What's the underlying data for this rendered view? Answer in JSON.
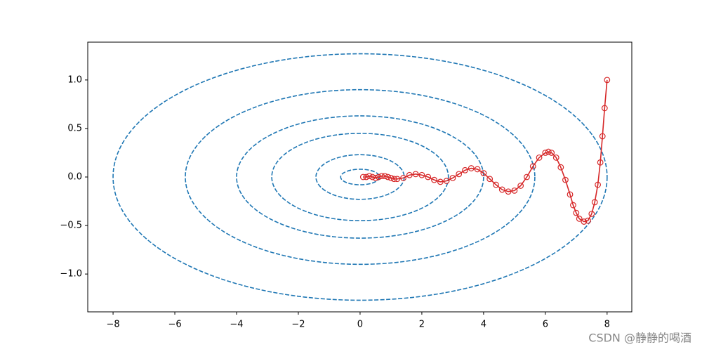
{
  "chart_data": {
    "type": "line",
    "xlim": [
      -8.82,
      8.8
    ],
    "ylim": [
      -1.39,
      1.39
    ],
    "xticks": [
      {
        "value": -8,
        "label": "−8"
      },
      {
        "value": -6,
        "label": "−6"
      },
      {
        "value": -4,
        "label": "−4"
      },
      {
        "value": -2,
        "label": "−2"
      },
      0,
      2,
      4,
      6,
      8
    ],
    "yticks": [
      {
        "value": -1,
        "label": "−1.0"
      },
      {
        "value": -0.5,
        "label": "−0.5"
      },
      {
        "value": 0,
        "label": "0.0"
      },
      {
        "value": 0.5,
        "label": "0.5"
      },
      {
        "value": 1,
        "label": "1.0"
      }
    ],
    "contour_color": "#1f77b4",
    "contours": [
      {
        "rx": 0.63,
        "ry": 0.08
      },
      {
        "rx": 1.43,
        "ry": 0.23
      },
      {
        "rx": 2.86,
        "ry": 0.45
      },
      {
        "rx": 4.0,
        "ry": 0.63
      },
      {
        "rx": 5.66,
        "ry": 0.9
      },
      {
        "rx": 8.0,
        "ry": 1.27
      }
    ],
    "series": [
      {
        "color": "#d62728",
        "x": [
          0.1,
          0.2,
          0.3,
          0.4,
          0.5,
          0.6,
          0.7,
          0.8,
          0.9,
          1.0,
          1.1,
          1.2,
          1.4,
          1.6,
          1.8,
          2.0,
          2.2,
          2.4,
          2.6,
          2.8,
          3.0,
          3.2,
          3.4,
          3.6,
          3.8,
          4.0,
          4.2,
          4.4,
          4.6,
          4.8,
          5.0,
          5.2,
          5.4,
          5.6,
          5.8,
          6.0,
          6.1,
          6.2,
          6.35,
          6.5,
          6.65,
          6.8,
          6.9,
          7.0,
          7.1,
          7.25,
          7.38,
          7.5,
          7.6,
          7.7,
          7.78,
          7.85,
          7.92,
          8.0
        ],
        "values": [
          0.0,
          0.0,
          0.01,
          0.0,
          -0.01,
          0.0,
          0.01,
          0.01,
          0.0,
          -0.01,
          -0.02,
          -0.02,
          -0.01,
          0.02,
          0.03,
          0.02,
          0.0,
          -0.03,
          -0.05,
          -0.04,
          -0.01,
          0.03,
          0.07,
          0.09,
          0.08,
          0.04,
          -0.02,
          -0.08,
          -0.13,
          -0.15,
          -0.14,
          -0.09,
          0.0,
          0.11,
          0.2,
          0.25,
          0.26,
          0.25,
          0.2,
          0.1,
          -0.03,
          -0.18,
          -0.29,
          -0.37,
          -0.43,
          -0.46,
          -0.45,
          -0.38,
          -0.26,
          -0.08,
          0.15,
          0.42,
          0.71,
          1.0
        ]
      }
    ],
    "watermark": "CSDN @静静的喝酒"
  }
}
